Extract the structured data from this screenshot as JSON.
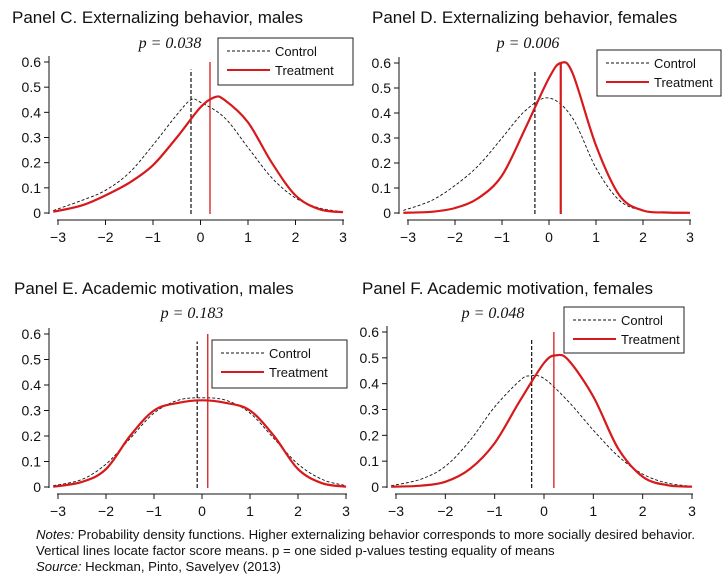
{
  "colors": {
    "control": "#111111",
    "treatment": "#d7191c",
    "axis": "#111111"
  },
  "notes": {
    "label": "Notes:",
    "text": "Probability density functions. Higher externalizing behavior corresponds to more socially desired behavior. Vertical lines locate factor score means. p = one sided p-values testing equality of means",
    "source_label": "Source:",
    "source_text": "Heckman, Pinto, Savelyev (2013)"
  },
  "chart_data": [
    {
      "type": "line",
      "title": "Panel C. Externalizing behavior, males",
      "pvalue": "p = 0.038",
      "xlim": [
        -3,
        3
      ],
      "ylim": [
        0,
        0.6
      ],
      "xticks": [
        "−3",
        "−2",
        "−1",
        "0",
        "1",
        "2",
        "3"
      ],
      "yticks": [
        "0",
        "0.1",
        "0.2",
        "0.3",
        "0.4",
        "0.5",
        "0.6"
      ],
      "legend": "top-right",
      "series": [
        {
          "name": "Control",
          "style": "dashed",
          "mean": -0.2,
          "x": [
            -3.1,
            -2.5,
            -2,
            -1.5,
            -1,
            -0.5,
            -0.2,
            0,
            0.5,
            1,
            1.5,
            2,
            2.5,
            3
          ],
          "y": [
            0.01,
            0.05,
            0.09,
            0.16,
            0.27,
            0.39,
            0.45,
            0.44,
            0.38,
            0.26,
            0.14,
            0.06,
            0.02,
            0.005
          ]
        },
        {
          "name": "Treatment",
          "style": "solid",
          "mean": 0.2,
          "x": [
            -3.1,
            -2.5,
            -2,
            -1.5,
            -1,
            -0.5,
            0,
            0.3,
            0.5,
            1,
            1.5,
            2,
            2.5,
            3
          ],
          "y": [
            0.005,
            0.03,
            0.07,
            0.12,
            0.19,
            0.3,
            0.42,
            0.46,
            0.45,
            0.36,
            0.2,
            0.07,
            0.015,
            0.003
          ]
        }
      ]
    },
    {
      "type": "line",
      "title": "Panel D. Externalizing behavior, females",
      "pvalue": "p = 0.006",
      "xlim": [
        -3,
        3
      ],
      "ylim": [
        0,
        0.6
      ],
      "xticks": [
        "−3",
        "−2",
        "−1",
        "0",
        "1",
        "2",
        "3"
      ],
      "yticks": [
        "0",
        "0.1",
        "0.2",
        "0.3",
        "0.4",
        "0.5",
        "0.6"
      ],
      "legend": "top-right",
      "series": [
        {
          "name": "Control",
          "style": "dashed",
          "mean": -0.3,
          "x": [
            -3.1,
            -2.5,
            -2,
            -1.5,
            -1,
            -0.5,
            0,
            0.5,
            1,
            1.5,
            2,
            2.5,
            3
          ],
          "y": [
            0.01,
            0.05,
            0.11,
            0.19,
            0.3,
            0.41,
            0.46,
            0.38,
            0.18,
            0.05,
            0.01,
            0.003,
            0.001
          ]
        },
        {
          "name": "Treatment",
          "style": "solid",
          "mean": 0.25,
          "x": [
            -3.1,
            -2.5,
            -2,
            -1.5,
            -1,
            -0.5,
            0,
            0.25,
            0.5,
            1,
            1.5,
            2,
            2.5,
            3
          ],
          "y": [
            0.001,
            0.005,
            0.02,
            0.06,
            0.15,
            0.34,
            0.54,
            0.6,
            0.56,
            0.27,
            0.07,
            0.01,
            0.002,
            0.001
          ]
        }
      ]
    },
    {
      "type": "line",
      "title": "Panel E. Academic motivation, males",
      "pvalue": "p = 0.183",
      "xlim": [
        -3,
        3
      ],
      "ylim": [
        0,
        0.6
      ],
      "xticks": [
        "−3",
        "−2",
        "−1",
        "0",
        "1",
        "2",
        "3"
      ],
      "yticks": [
        "0",
        "0.1",
        "0.2",
        "0.3",
        "0.4",
        "0.5",
        "0.6"
      ],
      "legend": "top-right",
      "series": [
        {
          "name": "Control",
          "style": "dashed",
          "mean": -0.1,
          "x": [
            -3.1,
            -2.5,
            -2,
            -1.5,
            -1,
            -0.5,
            0,
            0.5,
            1,
            1.5,
            2,
            2.5,
            3
          ],
          "y": [
            0.005,
            0.03,
            0.09,
            0.19,
            0.29,
            0.34,
            0.35,
            0.34,
            0.29,
            0.19,
            0.09,
            0.03,
            0.005
          ]
        },
        {
          "name": "Treatment",
          "style": "solid",
          "mean": 0.12,
          "x": [
            -3.1,
            -2.5,
            -2,
            -1.5,
            -1,
            -0.5,
            0,
            0.5,
            1,
            1.5,
            2,
            2.5,
            3
          ],
          "y": [
            0.001,
            0.02,
            0.07,
            0.2,
            0.3,
            0.33,
            0.34,
            0.33,
            0.3,
            0.2,
            0.07,
            0.015,
            0.001
          ]
        }
      ]
    },
    {
      "type": "line",
      "title": "Panel F. Academic motivation, females",
      "pvalue": "p = 0.048",
      "xlim": [
        -3,
        3
      ],
      "ylim": [
        0,
        0.6
      ],
      "xticks": [
        "−3",
        "−2",
        "−1",
        "0",
        "1",
        "2",
        "3"
      ],
      "yticks": [
        "0",
        "0.1",
        "0.2",
        "0.3",
        "0.4",
        "0.5",
        "0.6"
      ],
      "legend": "top-right",
      "series": [
        {
          "name": "Control",
          "style": "dashed",
          "mean": -0.25,
          "x": [
            -3.1,
            -2.5,
            -2,
            -1.5,
            -1,
            -0.5,
            -0.3,
            0,
            0.5,
            1,
            1.5,
            2,
            2.5,
            3
          ],
          "y": [
            0.005,
            0.03,
            0.08,
            0.18,
            0.31,
            0.41,
            0.43,
            0.42,
            0.33,
            0.22,
            0.12,
            0.05,
            0.015,
            0.003
          ]
        },
        {
          "name": "Treatment",
          "style": "solid",
          "mean": 0.2,
          "x": [
            -3.1,
            -2.5,
            -2,
            -1.5,
            -1,
            -0.5,
            0,
            0.25,
            0.5,
            1,
            1.5,
            2,
            2.5,
            3
          ],
          "y": [
            0.001,
            0.005,
            0.02,
            0.07,
            0.17,
            0.33,
            0.48,
            0.51,
            0.49,
            0.35,
            0.15,
            0.04,
            0.007,
            0.001
          ]
        }
      ]
    }
  ]
}
